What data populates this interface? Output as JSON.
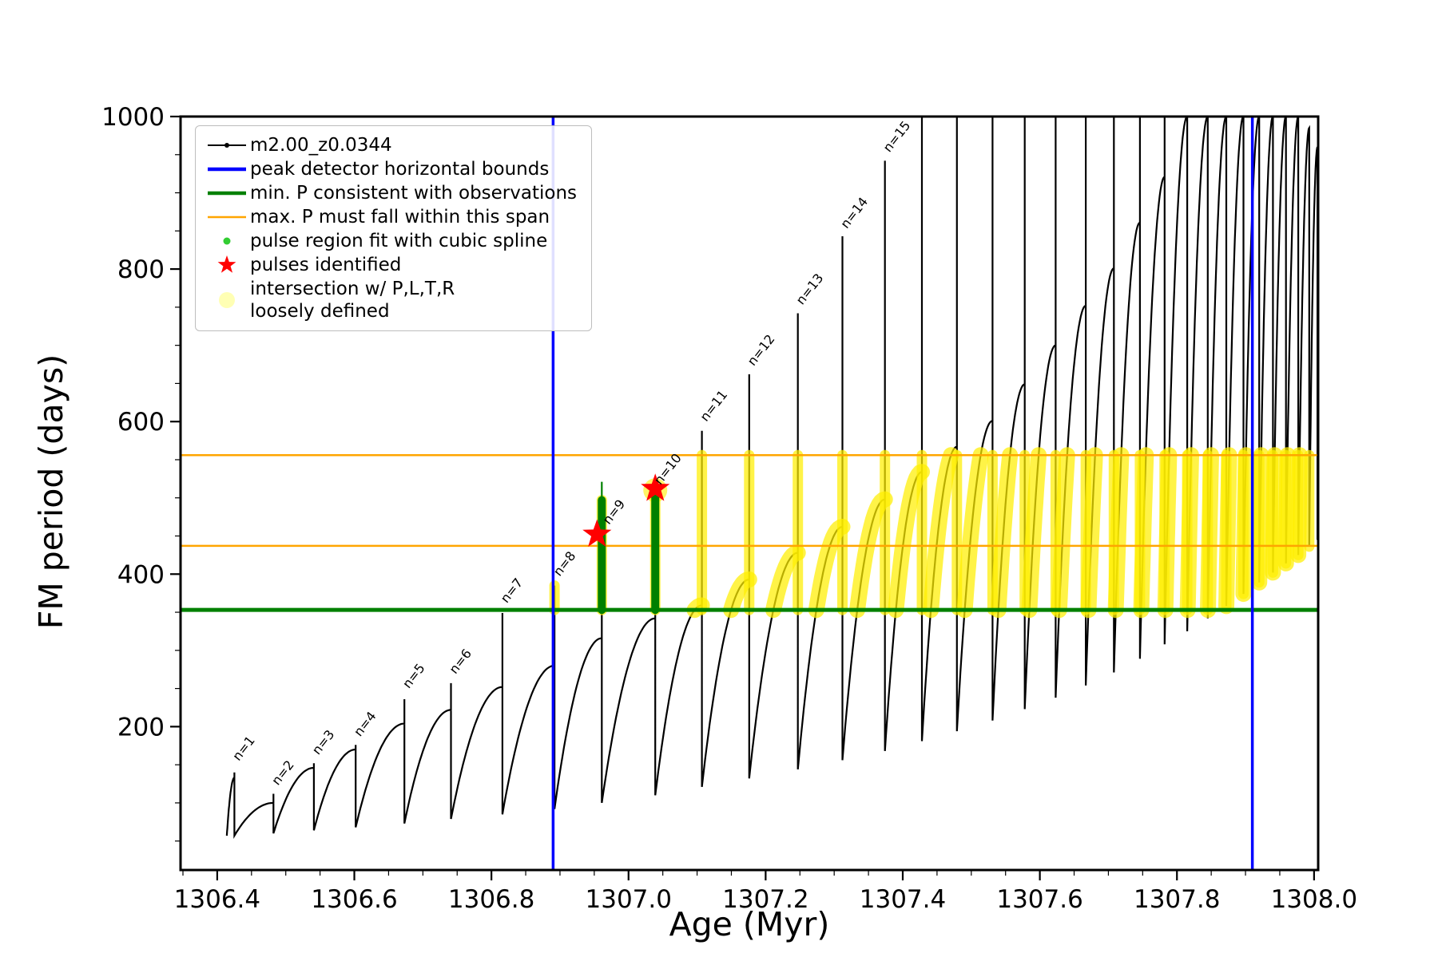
{
  "figure": {
    "xlabel": "Age (Myr)",
    "ylabel": "FM period (days)",
    "xlim": [
      1306.3465,
      1308.006
    ],
    "ylim": [
      12,
      1000
    ],
    "x_ticks": [
      {
        "v": 1306.4,
        "label": "1306.4"
      },
      {
        "v": 1306.6,
        "label": "1306.6"
      },
      {
        "v": 1306.8,
        "label": "1306.8"
      },
      {
        "v": 1307.0,
        "label": "1307.0"
      },
      {
        "v": 1307.2,
        "label": "1307.2"
      },
      {
        "v": 1307.4,
        "label": "1307.4"
      },
      {
        "v": 1307.6,
        "label": "1307.6"
      },
      {
        "v": 1307.8,
        "label": "1307.8"
      },
      {
        "v": 1308.0,
        "label": "1308.0"
      }
    ],
    "y_ticks": [
      {
        "v": 200,
        "label": "200"
      },
      {
        "v": 400,
        "label": "400"
      },
      {
        "v": 600,
        "label": "600"
      },
      {
        "v": 800,
        "label": "800"
      },
      {
        "v": 1000,
        "label": "1000"
      }
    ],
    "x_minor_step": 0.05,
    "y_minor_step": 50
  },
  "legend": {
    "position": "upper left",
    "items": [
      {
        "label": "m2.00_z0.0344",
        "marker": "line-dot",
        "color": "#000000"
      },
      {
        "label": "peak detector horizontal bounds",
        "marker": "thick-line",
        "color": "#0000ff"
      },
      {
        "label": "min. P consistent with observations",
        "marker": "thick-line",
        "color": "#008000"
      },
      {
        "label": "max. P must fall within this span",
        "marker": "line",
        "color": "#ffa500"
      },
      {
        "label": "pulse region fit with cubic spline",
        "marker": "small-dot",
        "color": "#32cd32"
      },
      {
        "label": "pulses identified",
        "marker": "star",
        "color": "#ff0000"
      },
      {
        "label": "intersection w/ P,L,T,R\nloosely defined",
        "marker": "big-dot",
        "color": "#ffffb0"
      }
    ]
  },
  "chart_data": {
    "type": "line",
    "series_name": "m2.00_z0.0344",
    "x_start": 1306.414,
    "y_start": 57,
    "teeth_columns": [
      "x_spike",
      "y_peak_smooth",
      "y_spike_top",
      "y_min_after"
    ],
    "teeth": [
      [
        1306.425,
        133,
        140,
        57
      ],
      [
        1306.482,
        100,
        112,
        60
      ],
      [
        1306.541,
        146,
        152,
        64
      ],
      [
        1306.602,
        170,
        176,
        68
      ],
      [
        1306.673,
        204,
        236,
        73
      ],
      [
        1306.741,
        222,
        257,
        79
      ],
      [
        1306.816,
        252,
        349,
        85
      ],
      [
        1306.892,
        280,
        385,
        92
      ],
      [
        1306.961,
        316,
        497,
        100
      ],
      [
        1307.039,
        342,
        505,
        110
      ],
      [
        1307.107,
        359,
        588,
        121
      ],
      [
        1307.176,
        393,
        662,
        132
      ],
      [
        1307.247,
        428,
        742,
        144
      ],
      [
        1307.312,
        462,
        843,
        156
      ],
      [
        1307.374,
        498,
        942,
        168
      ],
      [
        1307.428,
        534,
        1000,
        181
      ],
      [
        1307.479,
        567,
        1000,
        194
      ],
      [
        1307.531,
        601,
        1000,
        208
      ],
      [
        1307.578,
        649,
        1000,
        223
      ],
      [
        1307.623,
        700,
        1000,
        238
      ],
      [
        1307.667,
        752,
        1000,
        254
      ],
      [
        1307.708,
        801,
        1000,
        271
      ],
      [
        1307.746,
        861,
        1000,
        289
      ],
      [
        1307.782,
        921,
        1000,
        308
      ],
      [
        1307.815,
        1000,
        1000,
        325
      ],
      [
        1307.845,
        1000,
        1000,
        342
      ],
      [
        1307.872,
        1000,
        1000,
        358
      ],
      [
        1307.897,
        1000,
        1000,
        374
      ],
      [
        1307.92,
        1000,
        1000,
        389
      ],
      [
        1307.94,
        1000,
        1000,
        402
      ],
      [
        1307.959,
        1000,
        1000,
        414
      ],
      [
        1307.977,
        1000,
        1000,
        425
      ],
      [
        1307.993,
        985,
        985,
        436
      ],
      [
        1308.005,
        960,
        960,
        445
      ]
    ],
    "pulse_labels": [
      {
        "n": "n=1",
        "x": 1306.428,
        "y": 150
      },
      {
        "n": "n=2",
        "x": 1306.485,
        "y": 118
      },
      {
        "n": "n=3",
        "x": 1306.544,
        "y": 158
      },
      {
        "n": "n=4",
        "x": 1306.605,
        "y": 182
      },
      {
        "n": "n=5",
        "x": 1306.676,
        "y": 245
      },
      {
        "n": "n=6",
        "x": 1306.744,
        "y": 264
      },
      {
        "n": "n=7",
        "x": 1306.819,
        "y": 357
      },
      {
        "n": "n=8",
        "x": 1306.896,
        "y": 392
      },
      {
        "n": "n=9",
        "x": 1306.968,
        "y": 460
      },
      {
        "n": "n=10",
        "x": 1307.043,
        "y": 512
      },
      {
        "n": "n=11",
        "x": 1307.11,
        "y": 595
      },
      {
        "n": "n=12",
        "x": 1307.179,
        "y": 668
      },
      {
        "n": "n=13",
        "x": 1307.25,
        "y": 748
      },
      {
        "n": "n=14",
        "x": 1307.315,
        "y": 848
      },
      {
        "n": "n=15",
        "x": 1307.377,
        "y": 948
      }
    ],
    "peak_detector_bounds_x": [
      1306.89,
      1307.91
    ],
    "min_P_y": 353,
    "max_P_span_y": [
      437,
      556
    ],
    "intersection_band": {
      "x_range": [
        1306.885,
        1308.0
      ],
      "y_range": [
        353,
        556
      ]
    },
    "spline_columns": [
      {
        "x": 1306.961,
        "y0": 353,
        "y1": 497,
        "tip": 521
      },
      {
        "x": 1307.039,
        "y0": 353,
        "y1": 505,
        "tip": 507
      }
    ],
    "pulses_identified": [
      {
        "x": 1306.954,
        "y": 452
      },
      {
        "x": 1307.039,
        "y": 512
      }
    ],
    "extra_intersection_blobs": [
      {
        "x": 1307.039,
        "y": 510
      }
    ],
    "colors": {
      "curve": "#000000",
      "bounds": "#0000ff",
      "min_P": "#008000",
      "max_P": "#ffa500",
      "spline": "#008000",
      "pulse": "#ff0000",
      "intersection": "#ffee00"
    }
  }
}
